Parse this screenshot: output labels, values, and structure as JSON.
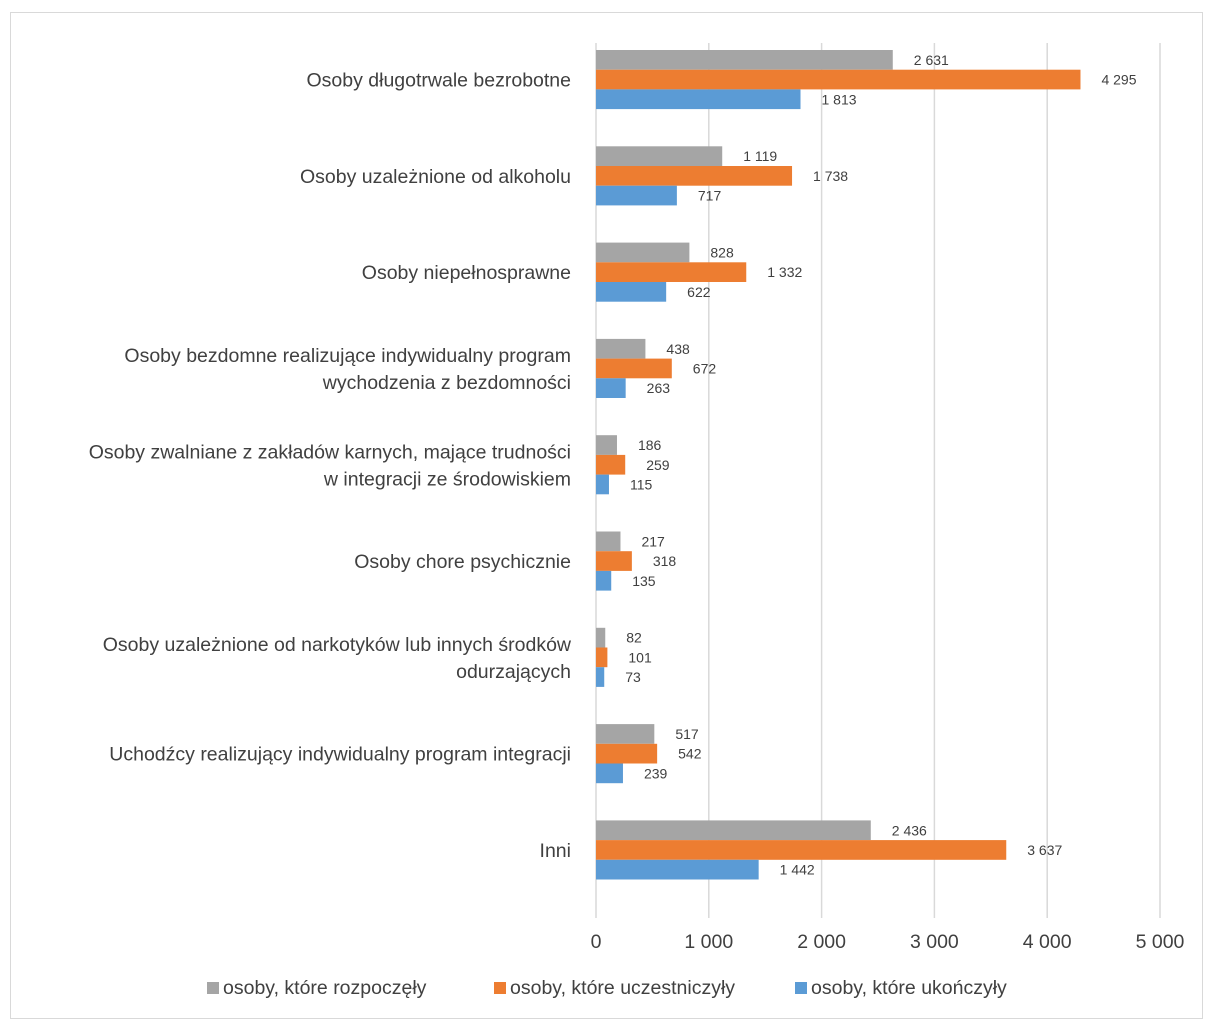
{
  "chart_data": {
    "type": "bar",
    "orientation": "horizontal",
    "categories": [
      [
        "Osoby długotrwale bezrobotne"
      ],
      [
        "Osoby uzależnione od alkoholu"
      ],
      [
        "Osoby niepełnosprawne"
      ],
      [
        "Osoby bezdomne realizujące indywidualny program",
        "wychodzenia z bezdomności"
      ],
      [
        "Osoby zwalniane z zakładów karnych, mające trudności",
        "w integracji ze środowiskiem"
      ],
      [
        "Osoby chore psychicznie"
      ],
      [
        "Osoby uzależnione od narkotyków lub innych środków",
        "odurzających"
      ],
      [
        "Uchodźcy realizujący indywidualny program integracji"
      ],
      [
        "Inni"
      ]
    ],
    "series": [
      {
        "name": "osoby, które rozpoczęły",
        "color": "#a5a5a5",
        "values": [
          2631,
          1119,
          828,
          438,
          186,
          217,
          82,
          517,
          2436
        ],
        "labels": [
          "2 631",
          "1 119",
          "828",
          "438",
          "186",
          "217",
          "82",
          "517",
          "2 436"
        ]
      },
      {
        "name": "osoby, które uczestniczyły",
        "color": "#ed7d31",
        "values": [
          4295,
          1738,
          1332,
          672,
          259,
          318,
          101,
          542,
          3637
        ],
        "labels": [
          "4 295",
          "1 738",
          "1 332",
          "672",
          "259",
          "318",
          "101",
          "542",
          "3 637"
        ]
      },
      {
        "name": "osoby, które ukończyły",
        "color": "#5b9bd5",
        "values": [
          1813,
          717,
          622,
          263,
          115,
          135,
          73,
          239,
          1442
        ],
        "labels": [
          "1 813",
          "717",
          "622",
          "263",
          "115",
          "135",
          "73",
          "239",
          "1 442"
        ]
      }
    ],
    "xlim": [
      0,
      5000
    ],
    "xticks": [
      0,
      1000,
      2000,
      3000,
      4000,
      5000
    ],
    "xtick_labels": [
      "0",
      "1 000",
      "2 000",
      "3 000",
      "4 000",
      "5 000"
    ],
    "grid": true,
    "legend_position": "bottom",
    "title": "",
    "xlabel": "",
    "ylabel": ""
  }
}
